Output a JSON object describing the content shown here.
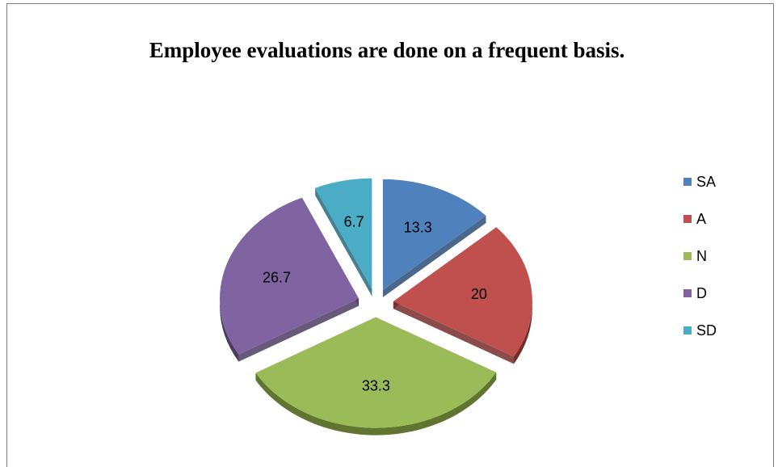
{
  "chart_data": {
    "type": "pie",
    "title": "Employee evaluations are done on a frequent basis.",
    "categories": [
      "SA",
      "A",
      "N",
      "D",
      "SD"
    ],
    "values": [
      13.3,
      20,
      33.3,
      26.7,
      6.7
    ],
    "data_labels": [
      "13.3",
      "20",
      "33.3",
      "26.7",
      "6.7"
    ],
    "colors": [
      "#4f81bd",
      "#c0504d",
      "#9bbb59",
      "#8064a2",
      "#4bacc6"
    ],
    "dark_colors": [
      "#2c4d75",
      "#772c2a",
      "#5f7530",
      "#4d3b62",
      "#276a7c"
    ],
    "exploded": true,
    "style": "3d",
    "legend_position": "right"
  }
}
